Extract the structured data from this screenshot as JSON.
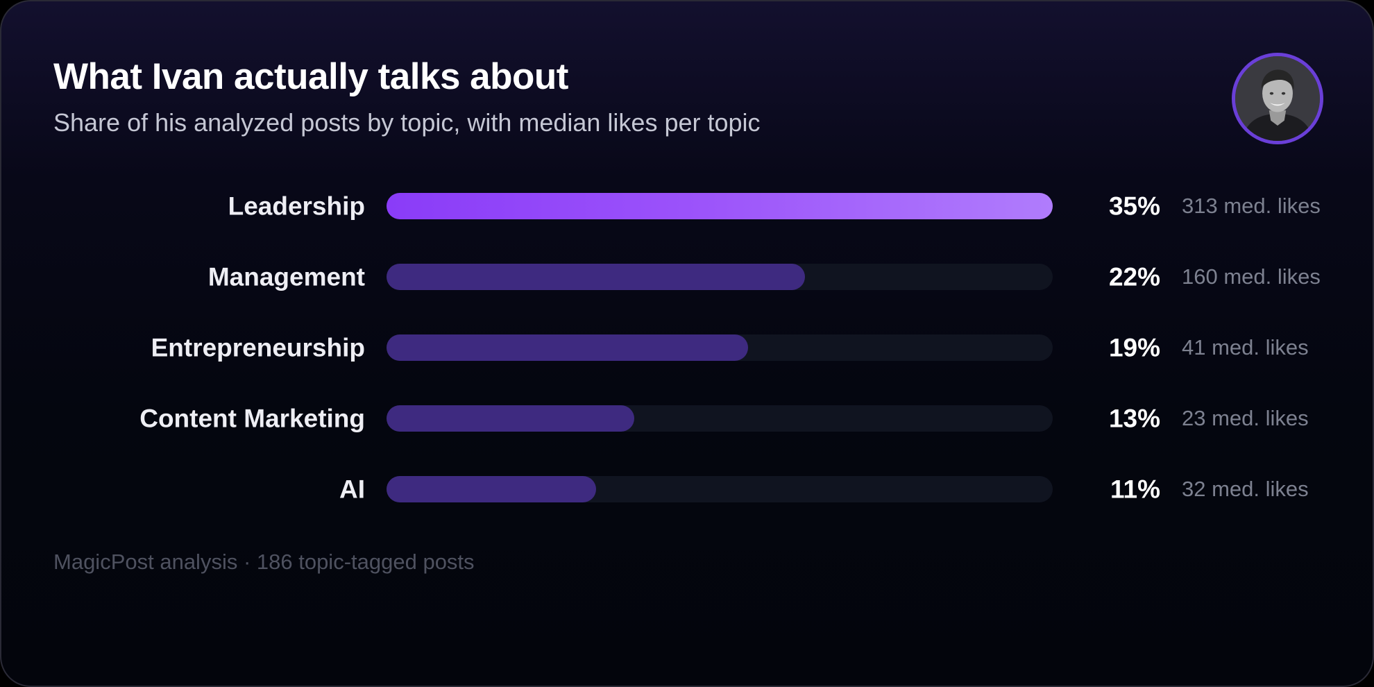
{
  "header": {
    "title": "What Ivan actually talks about",
    "subtitle": "Share of his analyzed posts by topic, with median likes per topic"
  },
  "avatar": {
    "alt": "Ivan",
    "icon": "profile-photo"
  },
  "footer": {
    "text": "MagicPost analysis · 186 topic-tagged posts"
  },
  "colors": {
    "top_bar_gradient": [
      "#8a3cf8",
      "#b07cfc"
    ],
    "bar": "#3e2a80",
    "track": "#101420",
    "background": "#05070f"
  },
  "chart_data": {
    "type": "bar",
    "orientation": "horizontal",
    "title": "What Ivan actually talks about",
    "subtitle": "Share of his analyzed posts by topic, with median likes per topic",
    "categories": [
      "Leadership",
      "Management",
      "Entrepreneurship",
      "Content Marketing",
      "AI"
    ],
    "values": [
      35,
      22,
      19,
      13,
      11
    ],
    "value_labels": [
      "35%",
      "22%",
      "19%",
      "13%",
      "11%"
    ],
    "median_likes": [
      313,
      160,
      41,
      23,
      32
    ],
    "median_likes_labels": [
      "313 med. likes",
      "160 med. likes",
      "41 med. likes",
      "23 med. likes",
      "32 med. likes"
    ],
    "xlim": [
      0,
      35
    ],
    "unit": "%",
    "grid": false,
    "legend": "none"
  }
}
